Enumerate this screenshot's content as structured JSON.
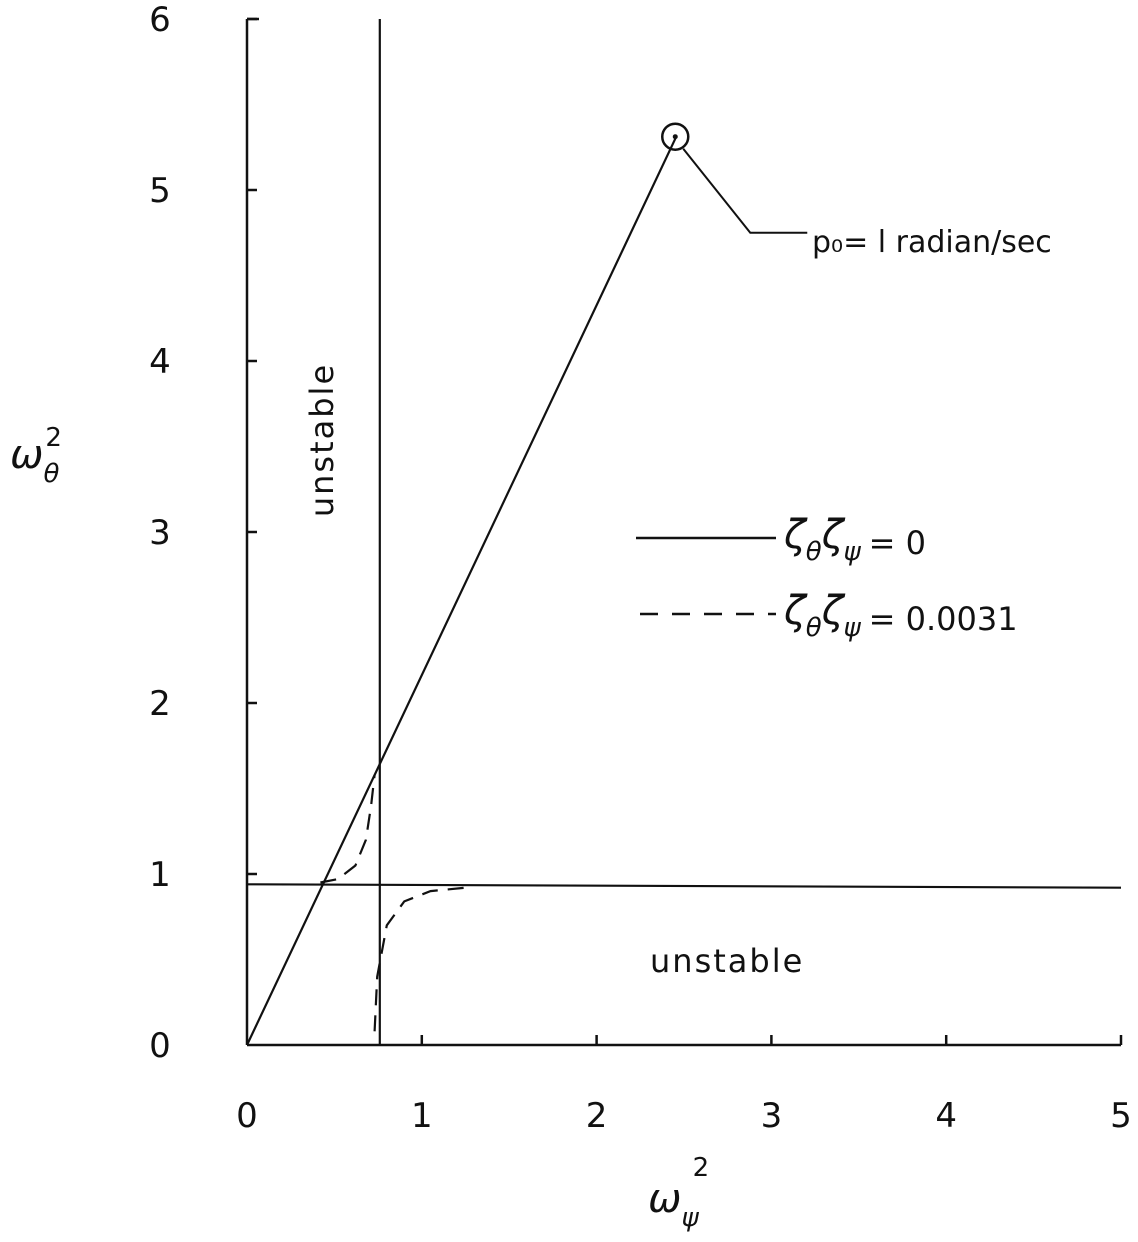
{
  "chart_data": {
    "type": "line",
    "xlabel": {
      "symbol": "ω",
      "sub": "ψ",
      "sup": "2"
    },
    "ylabel": {
      "symbol": "ω",
      "sub": "θ",
      "sup": "2"
    },
    "xlim": [
      0,
      5
    ],
    "ylim": [
      0,
      6
    ],
    "x_ticks": [
      "0",
      "1",
      "2",
      "3",
      "4",
      "5"
    ],
    "y_ticks": [
      "0",
      "1",
      "2",
      "3",
      "4",
      "5",
      "6"
    ],
    "grid": false,
    "legend_position": "center-right",
    "series": [
      {
        "name": "ζθζψ = 0",
        "style": "solid",
        "segments": [
          [
            [
              0,
              0
            ],
            [
              2.45,
              5.3
            ]
          ],
          [
            [
              0.76,
              0
            ],
            [
              0.76,
              6
            ]
          ],
          [
            [
              0,
              0.94
            ],
            [
              5,
              0.92
            ]
          ]
        ]
      },
      {
        "name": "ζθζψ = 0.0031",
        "style": "dashed",
        "segments": [
          [
            [
              0.42,
              0.95
            ],
            [
              0.52,
              0.97
            ],
            [
              0.62,
              1.05
            ],
            [
              0.68,
              1.2
            ],
            [
              0.71,
              1.4
            ],
            [
              0.73,
              1.58
            ]
          ],
          [
            [
              0.73,
              0.08
            ],
            [
              0.745,
              0.4
            ],
            [
              0.8,
              0.7
            ],
            [
              0.9,
              0.84
            ],
            [
              1.05,
              0.9
            ],
            [
              1.25,
              0.92
            ]
          ]
        ]
      }
    ],
    "marker": {
      "x": 2.45,
      "y": 5.3
    },
    "annotations": {
      "point_label": "p₀= l radian/sec",
      "unstable_left": "unstable",
      "unstable_bottom": "unstable"
    },
    "legend": [
      {
        "symbol1": "ζ",
        "sub1": "θ",
        "symbol2": "ζ",
        "sub2": "ψ",
        "value": "= 0",
        "style": "solid"
      },
      {
        "symbol1": "ζ",
        "sub1": "θ",
        "symbol2": "ζ",
        "sub2": "ψ",
        "value": "= 0.0031",
        "style": "dashed"
      }
    ]
  }
}
